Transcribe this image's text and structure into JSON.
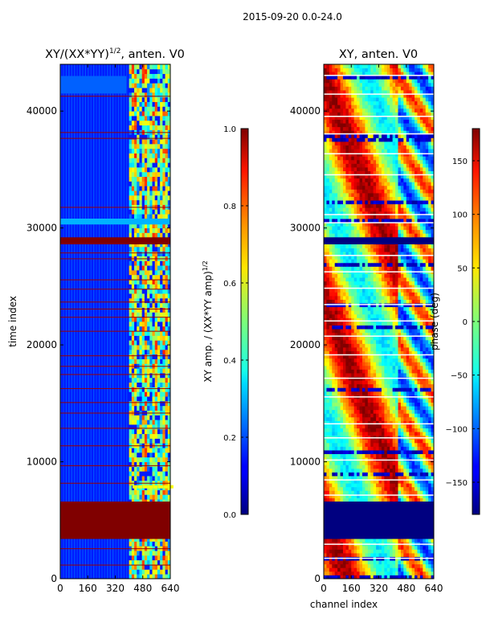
{
  "suptitle": "2015-09-20 0.0-24.0",
  "chart_data": [
    {
      "type": "heatmap",
      "title": "XY/(XX*YY)^1/2, anten. V0",
      "title_base": "XY/(XX*YY)",
      "title_exp": "1/2",
      "title_tail": ", anten. V0",
      "xlabel": "",
      "ylabel": "time index",
      "xlim": [
        0,
        640
      ],
      "ylim": [
        0,
        44000
      ],
      "x_ticks": [
        0,
        160,
        320,
        480,
        640
      ],
      "y_ticks": [
        0,
        10000,
        20000,
        30000,
        40000
      ],
      "colormap": "jet",
      "colorbar": {
        "label": "XY amp. / (XX*YY amp)^1/2",
        "label_base": "XY amp. / (XX*YY amp)",
        "label_exp": "1/2",
        "range": [
          0.0,
          1.0
        ],
        "ticks": [
          0.0,
          0.2,
          0.4,
          0.6,
          0.8,
          1.0
        ],
        "tick_labels": [
          "0.0",
          "0.2",
          "0.4",
          "0.6",
          "0.8",
          "1.0"
        ]
      },
      "background_value": 0.15,
      "regions": [
        {
          "name": "flagged-block",
          "t_start": 3400,
          "t_end": 6600,
          "value": 1.0
        },
        {
          "name": "flagged-band",
          "t_start": 28600,
          "t_end": 29200,
          "value": 1.0
        },
        {
          "name": "bright-band",
          "t_start": 30300,
          "t_end": 30800,
          "value": 0.3
        }
      ],
      "feature": {
        "name": "active-channels",
        "ch_start": 400,
        "ch_end": 640
      }
    },
    {
      "type": "heatmap",
      "title": "XY, anten. V0",
      "xlabel": "channel index",
      "ylabel": "",
      "xlim": [
        0,
        640
      ],
      "ylim": [
        0,
        44000
      ],
      "x_ticks": [
        0,
        160,
        320,
        480,
        640
      ],
      "y_ticks": [
        0,
        10000,
        20000,
        30000,
        40000
      ],
      "colormap": "jet",
      "colorbar": {
        "label": "phase (deg)",
        "range": [
          -180,
          180
        ],
        "ticks": [
          -150,
          -100,
          -50,
          0,
          50,
          100,
          150
        ],
        "tick_labels": [
          "−150",
          "−100",
          "−50",
          "0",
          "50",
          "100",
          "150"
        ]
      },
      "regions": [
        {
          "name": "low-phase-block",
          "t_start": 3400,
          "t_end": 6600,
          "value": -180
        },
        {
          "name": "low-phase-band",
          "t_start": 28600,
          "t_end": 29200,
          "value": -180
        }
      ]
    }
  ]
}
